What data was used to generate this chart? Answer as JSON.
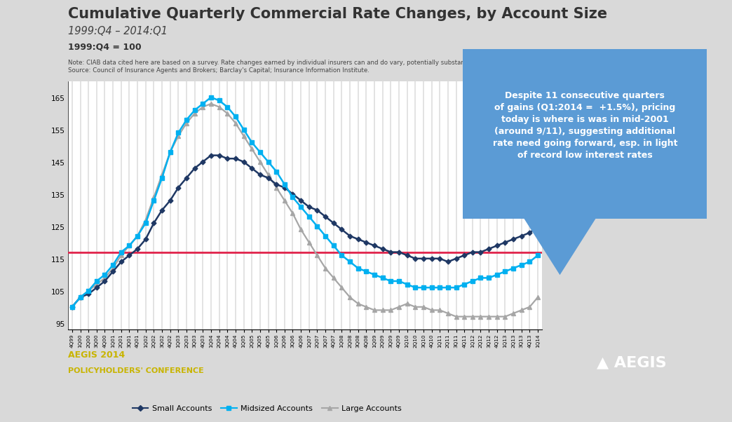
{
  "title": "Cumulative Quarterly Commercial Rate Changes, by Account Size",
  "subtitle": "1999:Q4 – 2014:Q1",
  "y_label": "1999:Q4 = 100",
  "bg_color": "#d9d9d9",
  "plot_bg_color": "#ffffff",
  "banner_color": "#6b6b47",
  "ref_line_y": 117,
  "ref_line_color": "#e0224a",
  "callout_text": "Despite 11 consecutive quarters\nof gains (Q1:2014 =  +1.5%), pricing\ntoday is where is was in mid-2001\n(around 9/11), suggesting additional\nrate need going forward, esp. in light\nof record low interest rates",
  "callout_bg": "#5b9bd5",
  "callout_text_color": "#ffffff",
  "title_color": "#333333",
  "subtitle_color": "#404040",
  "ylabel_color": "#333333",
  "footer_note1": "Note: CIAB data cited here are based on a survey. Rate changes earned by individual insurers can and do vary, potentially substantially.",
  "footer_note2": "Source: Council of Insurance Agents and Brokers; Barclay's Capital; Insurance Information Institute.",
  "footer_color": "#444444",
  "brand_text1": "AEGIS 2014",
  "brand_text2": "POLICYHOLDERS' CONFERENCE",
  "brand_color": "#c8b400",
  "aegis_color": "#ffffff",
  "x_labels": [
    "4Q99",
    "1Q00",
    "2Q00",
    "3Q00",
    "4Q00",
    "1Q01",
    "2Q01",
    "3Q01",
    "4Q01",
    "1Q02",
    "2Q02",
    "3Q02",
    "4Q02",
    "1Q03",
    "2Q03",
    "3Q03",
    "4Q03",
    "1Q04",
    "2Q04",
    "3Q04",
    "4Q04",
    "1Q05",
    "2Q05",
    "3Q05",
    "4Q05",
    "1Q06",
    "2Q06",
    "3Q06",
    "4Q06",
    "1Q07",
    "2Q07",
    "3Q07",
    "4Q07",
    "1Q08",
    "2Q08",
    "3Q08",
    "4Q08",
    "1Q09",
    "2Q09",
    "3Q09",
    "4Q09",
    "1Q10",
    "2Q10",
    "3Q10",
    "4Q10",
    "1Q11",
    "2Q11",
    "3Q11",
    "4Q11",
    "1Q12",
    "2Q12",
    "3Q12",
    "4Q12",
    "1Q13",
    "2Q13",
    "3Q13",
    "4Q13",
    "1Q14"
  ],
  "small_accounts": [
    100,
    103,
    104,
    106,
    108,
    111,
    114,
    116,
    118,
    121,
    126,
    130,
    133,
    137,
    140,
    143,
    145,
    147,
    147,
    146,
    146,
    145,
    143,
    141,
    140,
    138,
    137,
    135,
    133,
    131,
    130,
    128,
    126,
    124,
    122,
    121,
    120,
    119,
    118,
    117,
    117,
    116,
    115,
    115,
    115,
    115,
    114,
    115,
    116,
    117,
    117,
    118,
    119,
    120,
    121,
    122,
    123,
    125
  ],
  "midsized_accounts": [
    100,
    103,
    105,
    108,
    110,
    113,
    117,
    119,
    122,
    126,
    133,
    140,
    148,
    154,
    158,
    161,
    163,
    165,
    164,
    162,
    159,
    155,
    151,
    148,
    145,
    142,
    138,
    134,
    131,
    128,
    125,
    122,
    119,
    116,
    114,
    112,
    111,
    110,
    109,
    108,
    108,
    107,
    106,
    106,
    106,
    106,
    106,
    106,
    107,
    108,
    109,
    109,
    110,
    111,
    112,
    113,
    114,
    116
  ],
  "large_accounts": [
    100,
    103,
    105,
    107,
    109,
    112,
    116,
    119,
    122,
    127,
    134,
    141,
    148,
    153,
    157,
    160,
    162,
    163,
    162,
    160,
    157,
    153,
    149,
    145,
    141,
    137,
    133,
    129,
    124,
    120,
    116,
    112,
    109,
    106,
    103,
    101,
    100,
    99,
    99,
    99,
    100,
    101,
    100,
    100,
    99,
    99,
    98,
    97,
    97,
    97,
    97,
    97,
    97,
    97,
    98,
    99,
    100,
    103
  ],
  "small_color": "#1f3864",
  "midsized_color": "#00b0f0",
  "large_color": "#a6a6a6",
  "ylim": [
    93,
    170
  ],
  "yticks": [
    95,
    105,
    115,
    125,
    135,
    145,
    155,
    165
  ]
}
